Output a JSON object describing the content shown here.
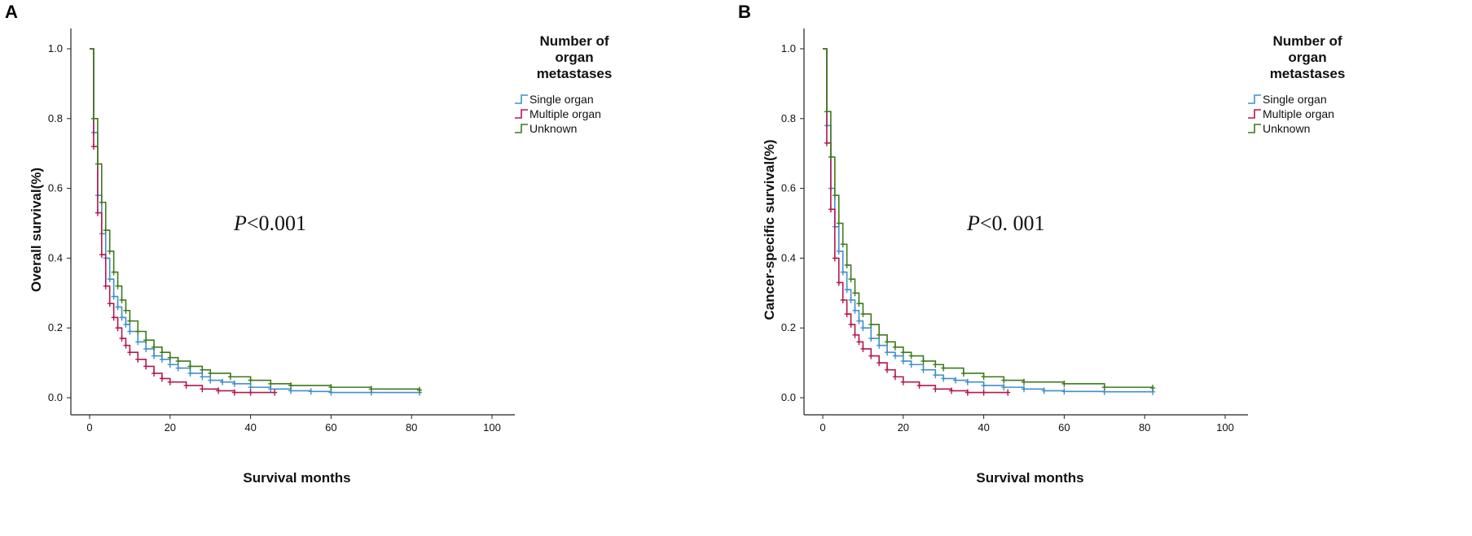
{
  "chart_data": [
    {
      "type": "line",
      "panel_label": "A",
      "title": "",
      "xlabel": "Survival months",
      "ylabel": "Overall survival(%)",
      "xlim": [
        0,
        100
      ],
      "ylim": [
        0,
        1.0
      ],
      "x_ticks": [
        "0",
        "20",
        "40",
        "60",
        "80",
        "100"
      ],
      "y_ticks": [
        "0.0",
        "0.2",
        "0.4",
        "0.6",
        "0.8",
        "1.0"
      ],
      "annotation": {
        "italic": "P",
        "text": "<0.001"
      },
      "legend_title": [
        "Number of",
        "organ",
        "metastases"
      ],
      "legend_position": "top-right",
      "series": [
        {
          "name": "Single organ",
          "color": "#3f8fce",
          "x": [
            0,
            1,
            2,
            3,
            4,
            5,
            6,
            7,
            8,
            9,
            10,
            12,
            14,
            16,
            18,
            20,
            22,
            25,
            28,
            30,
            33,
            36,
            40,
            45,
            50,
            55,
            60,
            70,
            82
          ],
          "y": [
            1.0,
            0.76,
            0.58,
            0.47,
            0.4,
            0.34,
            0.29,
            0.26,
            0.23,
            0.21,
            0.19,
            0.16,
            0.14,
            0.12,
            0.11,
            0.095,
            0.085,
            0.07,
            0.06,
            0.05,
            0.045,
            0.04,
            0.03,
            0.025,
            0.02,
            0.018,
            0.015,
            0.015,
            0.015
          ]
        },
        {
          "name": "Multiple organ",
          "color": "#b5174f",
          "x": [
            0,
            1,
            2,
            3,
            4,
            5,
            6,
            7,
            8,
            9,
            10,
            12,
            14,
            16,
            18,
            20,
            24,
            28,
            32,
            36,
            40,
            46
          ],
          "y": [
            1.0,
            0.72,
            0.53,
            0.41,
            0.32,
            0.27,
            0.23,
            0.2,
            0.17,
            0.15,
            0.13,
            0.11,
            0.09,
            0.07,
            0.055,
            0.045,
            0.035,
            0.025,
            0.02,
            0.015,
            0.015,
            0.015
          ]
        },
        {
          "name": "Unknown",
          "color": "#3d7a1a",
          "x": [
            0,
            1,
            2,
            3,
            4,
            5,
            6,
            7,
            8,
            9,
            10,
            12,
            14,
            16,
            18,
            20,
            22,
            25,
            28,
            30,
            35,
            40,
            45,
            50,
            60,
            70,
            82
          ],
          "y": [
            1.0,
            0.8,
            0.67,
            0.56,
            0.48,
            0.42,
            0.36,
            0.32,
            0.28,
            0.25,
            0.22,
            0.19,
            0.165,
            0.145,
            0.13,
            0.115,
            0.105,
            0.09,
            0.08,
            0.07,
            0.06,
            0.05,
            0.04,
            0.035,
            0.03,
            0.025,
            0.022
          ]
        }
      ]
    },
    {
      "type": "line",
      "panel_label": "B",
      "title": "",
      "xlabel": "Survival months",
      "ylabel": "Cancer-specific survival(%)",
      "xlim": [
        0,
        100
      ],
      "ylim": [
        0,
        1.0
      ],
      "x_ticks": [
        "0",
        "20",
        "40",
        "60",
        "80",
        "100"
      ],
      "y_ticks": [
        "0.0",
        "0.2",
        "0.4",
        "0.6",
        "0.8",
        "1.0"
      ],
      "annotation": {
        "italic": "P",
        "text": "<0. 001"
      },
      "legend_title": [
        "Number of",
        "organ",
        "metastases"
      ],
      "legend_position": "top-right",
      "series": [
        {
          "name": "Single organ",
          "color": "#3f8fce",
          "x": [
            0,
            1,
            2,
            3,
            4,
            5,
            6,
            7,
            8,
            9,
            10,
            12,
            14,
            16,
            18,
            20,
            22,
            25,
            28,
            30,
            33,
            36,
            40,
            45,
            50,
            55,
            60,
            70,
            82
          ],
          "y": [
            1.0,
            0.78,
            0.6,
            0.49,
            0.42,
            0.36,
            0.31,
            0.28,
            0.25,
            0.22,
            0.2,
            0.17,
            0.15,
            0.13,
            0.12,
            0.105,
            0.095,
            0.08,
            0.065,
            0.055,
            0.05,
            0.045,
            0.035,
            0.03,
            0.025,
            0.02,
            0.018,
            0.017,
            0.017
          ]
        },
        {
          "name": "Multiple organ",
          "color": "#b5174f",
          "x": [
            0,
            1,
            2,
            3,
            4,
            5,
            6,
            7,
            8,
            9,
            10,
            12,
            14,
            16,
            18,
            20,
            24,
            28,
            32,
            36,
            40,
            46
          ],
          "y": [
            1.0,
            0.73,
            0.54,
            0.4,
            0.33,
            0.28,
            0.24,
            0.21,
            0.18,
            0.16,
            0.14,
            0.12,
            0.1,
            0.08,
            0.06,
            0.045,
            0.035,
            0.025,
            0.02,
            0.015,
            0.015,
            0.015
          ]
        },
        {
          "name": "Unknown",
          "color": "#3d7a1a",
          "x": [
            0,
            1,
            2,
            3,
            4,
            5,
            6,
            7,
            8,
            9,
            10,
            12,
            14,
            16,
            18,
            20,
            22,
            25,
            28,
            30,
            35,
            40,
            45,
            50,
            60,
            70,
            82
          ],
          "y": [
            1.0,
            0.82,
            0.69,
            0.58,
            0.5,
            0.44,
            0.38,
            0.34,
            0.3,
            0.27,
            0.24,
            0.21,
            0.18,
            0.16,
            0.145,
            0.13,
            0.12,
            0.105,
            0.095,
            0.085,
            0.07,
            0.06,
            0.05,
            0.045,
            0.04,
            0.03,
            0.028
          ]
        }
      ]
    }
  ]
}
